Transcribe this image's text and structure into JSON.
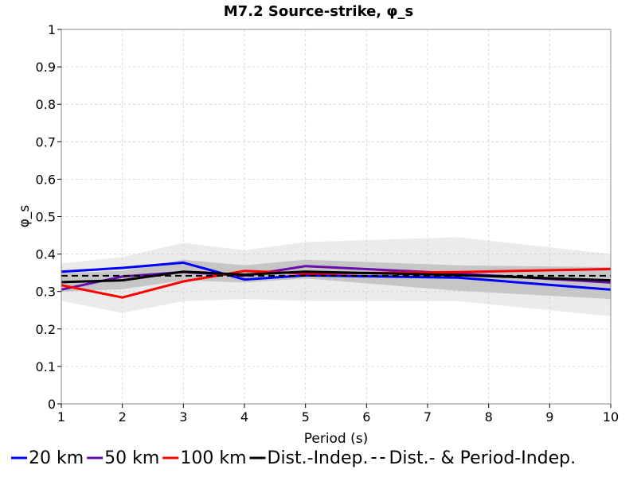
{
  "chart_data": {
    "type": "line",
    "title": "M7.2 Source-strike, φ_s",
    "xlabel": "Period (s)",
    "ylabel": "φ_s",
    "xlim": [
      1,
      10
    ],
    "ylim": [
      0,
      1
    ],
    "x_ticks": [
      "1",
      "2",
      "3",
      "4",
      "5",
      "6",
      "7",
      "8",
      "9",
      "10"
    ],
    "y_ticks": [
      "0",
      "0.1",
      "0.2",
      "0.3",
      "0.4",
      "0.5",
      "0.6",
      "0.7",
      "0.8",
      "0.9",
      "1"
    ],
    "grid": true,
    "legend_position": "bottom",
    "x": [
      1,
      2,
      3,
      4,
      5,
      7.5,
      10
    ],
    "series": [
      {
        "name": "20 km",
        "color": "#0000ff",
        "style": "solid",
        "values": [
          0.353,
          0.363,
          0.377,
          0.332,
          0.343,
          0.337,
          0.305
        ]
      },
      {
        "name": "50 km",
        "color": "#6a0dad",
        "style": "solid",
        "values": [
          0.305,
          0.34,
          0.352,
          0.342,
          0.368,
          0.348,
          0.324
        ]
      },
      {
        "name": "100 km",
        "color": "#ff0000",
        "style": "solid",
        "values": [
          0.317,
          0.284,
          0.327,
          0.355,
          0.348,
          0.352,
          0.36
        ]
      },
      {
        "name": "Dist.-Indep.",
        "color": "#000000",
        "style": "solid",
        "values": [
          0.325,
          0.33,
          0.353,
          0.345,
          0.353,
          0.344,
          0.33
        ]
      },
      {
        "name": "Dist.- & Period-Indep.",
        "color": "#000000",
        "style": "dashed",
        "values": [
          0.342,
          0.342,
          0.342,
          0.342,
          0.342,
          0.342,
          0.342
        ]
      }
    ],
    "bands": [
      {
        "color": "#ebebeb",
        "lower": [
          0.275,
          0.243,
          0.274,
          0.28,
          0.275,
          0.274,
          0.234
        ],
        "upper": [
          0.375,
          0.392,
          0.43,
          0.41,
          0.432,
          0.445,
          0.4
        ]
      },
      {
        "color": "#c6c6c6",
        "lower": [
          0.3,
          0.306,
          0.33,
          0.324,
          0.335,
          0.302,
          0.28
        ],
        "upper": [
          0.35,
          0.355,
          0.385,
          0.37,
          0.385,
          0.37,
          0.365
        ]
      }
    ]
  }
}
